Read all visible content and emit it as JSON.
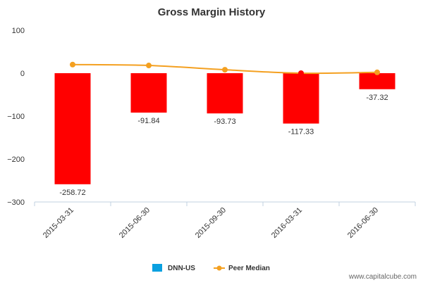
{
  "chart_data": {
    "type": "bar",
    "title": "Gross Margin History",
    "categories": [
      "2015-03-31",
      "2015-06-30",
      "2015-09-30",
      "2016-03-31",
      "2016-06-30"
    ],
    "series": [
      {
        "name": "DNN-US",
        "type": "bar",
        "values": [
          -258.72,
          -91.84,
          -93.73,
          -117.33,
          -37.32
        ],
        "data_labels": [
          "-258.72",
          "-91.84",
          "-93.73",
          "-117.33",
          "-37.32"
        ],
        "bar_color": "#ff0000",
        "legend_color": "#0aa0e0"
      },
      {
        "name": "Peer Median",
        "type": "line",
        "values": [
          20,
          18,
          8,
          0,
          2
        ],
        "line_color": "#f4a020",
        "marker_colors": [
          "#f4a020",
          "#f4a020",
          "#f4a020",
          "#ff0000",
          "#f4a020"
        ]
      }
    ],
    "ylim": [
      -300,
      100
    ],
    "yticks": [
      100,
      0,
      -100,
      -200,
      -300
    ],
    "ytick_labels": [
      "100",
      "0",
      "−100",
      "−200",
      "−300"
    ],
    "grid": false,
    "legend_position": "bottom-center"
  },
  "credit": "www.capitalcube.com"
}
